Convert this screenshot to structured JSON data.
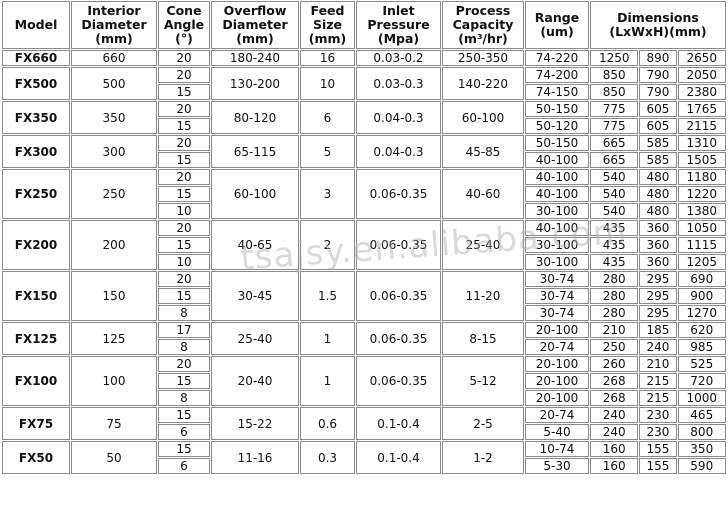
{
  "table": {
    "header": [
      "Model",
      "Interior\nDiameter\n(mm)",
      "Cone\nAngle\n(°)",
      "Overflow\nDiameter\n(mm)",
      "Feed\nSize\n(mm)",
      "Inlet\nPressure\n(Mpa)",
      "Process\nCapacity\n(m³/hr)",
      "Range\n(um)",
      "Dimensions\n(LxWxH)(mm)"
    ],
    "rows": [
      {
        "model": "FX660",
        "interior": "660",
        "overflow": "180-240",
        "feed": "16",
        "pressure": "0.03-0.2",
        "capacity": "250-350",
        "sub": [
          {
            "cone": "20",
            "range": "74-220",
            "dims": [
              "1250",
              "890",
              "2650"
            ]
          }
        ]
      },
      {
        "model": "FX500",
        "interior": "500",
        "overflow": "130-200",
        "feed": "10",
        "pressure": "0.03-0.3",
        "capacity": "140-220",
        "sub": [
          {
            "cone": "20",
            "range": "74-200",
            "dims": [
              "850",
              "790",
              "2050"
            ]
          },
          {
            "cone": "15",
            "range": "74-150",
            "dims": [
              "850",
              "790",
              "2380"
            ]
          }
        ]
      },
      {
        "model": "FX350",
        "interior": "350",
        "overflow": "80-120",
        "feed": "6",
        "pressure": "0.04-0.3",
        "capacity": "60-100",
        "sub": [
          {
            "cone": "20",
            "range": "50-150",
            "dims": [
              "775",
              "605",
              "1765"
            ]
          },
          {
            "cone": "15",
            "range": "50-120",
            "dims": [
              "775",
              "605",
              "2115"
            ]
          }
        ]
      },
      {
        "model": "FX300",
        "interior": "300",
        "overflow": "65-115",
        "feed": "5",
        "pressure": "0.04-0.3",
        "capacity": "45-85",
        "sub": [
          {
            "cone": "20",
            "range": "50-150",
            "dims": [
              "665",
              "585",
              "1310"
            ]
          },
          {
            "cone": "15",
            "range": "40-100",
            "dims": [
              "665",
              "585",
              "1505"
            ]
          }
        ]
      },
      {
        "model": "FX250",
        "interior": "250",
        "overflow": "60-100",
        "feed": "3",
        "pressure": "0.06-0.35",
        "capacity": "40-60",
        "sub": [
          {
            "cone": "20",
            "range": "40-100",
            "dims": [
              "540",
              "480",
              "1180"
            ]
          },
          {
            "cone": "15",
            "range": "40-100",
            "dims": [
              "540",
              "480",
              "1220"
            ]
          },
          {
            "cone": "10",
            "range": "30-100",
            "dims": [
              "540",
              "480",
              "1380"
            ]
          }
        ]
      },
      {
        "model": "FX200",
        "interior": "200",
        "overflow": "40-65",
        "feed": "2",
        "pressure": "0.06-0.35",
        "capacity": "25-40",
        "sub": [
          {
            "cone": "20",
            "range": "40-100",
            "dims": [
              "435",
              "360",
              "1050"
            ]
          },
          {
            "cone": "15",
            "range": "30-100",
            "dims": [
              "435",
              "360",
              "1115"
            ]
          },
          {
            "cone": "10",
            "range": "30-100",
            "dims": [
              "435",
              "360",
              "1205"
            ]
          }
        ]
      },
      {
        "model": "FX150",
        "interior": "150",
        "overflow": "30-45",
        "feed": "1.5",
        "pressure": "0.06-0.35",
        "capacity": "11-20",
        "sub": [
          {
            "cone": "20",
            "range": "30-74",
            "dims": [
              "280",
              "295",
              "690"
            ]
          },
          {
            "cone": "15",
            "range": "30-74",
            "dims": [
              "280",
              "295",
              "900"
            ]
          },
          {
            "cone": "8",
            "range": "30-74",
            "dims": [
              "280",
              "295",
              "1270"
            ]
          }
        ]
      },
      {
        "model": "FX125",
        "interior": "125",
        "overflow": "25-40",
        "feed": "1",
        "pressure": "0.06-0.35",
        "capacity": "8-15",
        "sub": [
          {
            "cone": "17",
            "range": "20-100",
            "dims": [
              "210",
              "185",
              "620"
            ]
          },
          {
            "cone": "8",
            "range": "20-74",
            "dims": [
              "250",
              "240",
              "985"
            ]
          }
        ]
      },
      {
        "model": "FX100",
        "interior": "100",
        "overflow": "20-40",
        "feed": "1",
        "pressure": "0.06-0.35",
        "capacity": "5-12",
        "sub": [
          {
            "cone": "20",
            "range": "20-100",
            "dims": [
              "260",
              "210",
              "525"
            ]
          },
          {
            "cone": "15",
            "range": "20-100",
            "dims": [
              "268",
              "215",
              "720"
            ]
          },
          {
            "cone": "8",
            "range": "20-100",
            "dims": [
              "268",
              "215",
              "1000"
            ]
          }
        ]
      },
      {
        "model": "FX75",
        "interior": "75",
        "overflow": "15-22",
        "feed": "0.6",
        "pressure": "0.1-0.4",
        "capacity": "2-5",
        "sub": [
          {
            "cone": "15",
            "range": "20-74",
            "dims": [
              "240",
              "230",
              "465"
            ]
          },
          {
            "cone": "6",
            "range": "5-40",
            "dims": [
              "240",
              "230",
              "800"
            ]
          }
        ]
      },
      {
        "model": "FX50",
        "interior": "50",
        "overflow": "11-16",
        "feed": "0.3",
        "pressure": "0.1-0.4",
        "capacity": "1-2",
        "sub": [
          {
            "cone": "15",
            "range": "10-74",
            "dims": [
              "160",
              "155",
              "350"
            ]
          },
          {
            "cone": "6",
            "range": "5-30",
            "dims": [
              "160",
              "155",
              "590"
            ]
          }
        ]
      }
    ]
  },
  "watermark": "tsajsy.en.alibaba.com"
}
